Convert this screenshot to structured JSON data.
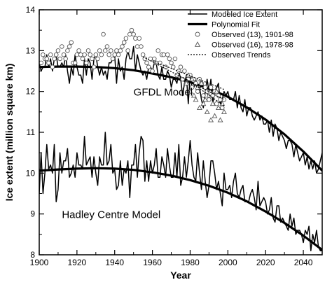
{
  "chart_data": {
    "type": "line",
    "xlabel": "Year",
    "ylabel": "Ice extent (million square km)",
    "xlim": [
      1900,
      2050
    ],
    "ylim": [
      8,
      14
    ],
    "x_ticks": [
      1900,
      1920,
      1940,
      1960,
      1980,
      2000,
      2020,
      2040
    ],
    "y_ticks": [
      8,
      9,
      10,
      11,
      12,
      13,
      14
    ],
    "grid": false,
    "legend_position": "top-right",
    "annotations": [
      {
        "text": "GFDL Model",
        "x": 1950,
        "y": 11.9
      },
      {
        "text": "Hadley Centre Model",
        "x": 1912,
        "y": 8.9
      }
    ],
    "legend": [
      {
        "label": "Modeled Ice Extent",
        "style": "thin-line"
      },
      {
        "label": "Polynomial Fit",
        "style": "thick-line"
      },
      {
        "label": "Observed (13), 1901-98",
        "style": "circle"
      },
      {
        "label": "Observed (16), 1978-98",
        "style": "triangle"
      },
      {
        "label": "Observed Trends",
        "style": "dotted-line"
      }
    ],
    "series": [
      {
        "name": "GFDL Model",
        "kind": "modeled",
        "x_start": 1900,
        "x_step": 1,
        "values": [
          12.7,
          12.5,
          12.6,
          12.6,
          12.9,
          12.6,
          12.8,
          12.5,
          12.8,
          12.9,
          12.6,
          12.6,
          12.7,
          12.6,
          12.9,
          12.5,
          12.2,
          12.6,
          12.4,
          12.9,
          12.6,
          12.4,
          12.4,
          12.2,
          12.8,
          12.4,
          12.8,
          12.7,
          12.3,
          12.8,
          12.9,
          12.6,
          12.4,
          12.6,
          12.4,
          12.5,
          12.3,
          12.7,
          12.7,
          12.8,
          12.9,
          12.2,
          12.8,
          12.5,
          12.6,
          12.3,
          12.8,
          13.0,
          12.8,
          12.8,
          13.1,
          12.5,
          12.9,
          12.7,
          12.5,
          12.4,
          12.5,
          12.3,
          12.6,
          12.6,
          12.5,
          12.7,
          12.7,
          12.4,
          12.3,
          12.6,
          12.3,
          12.3,
          12.5,
          12.4,
          12.1,
          12.3,
          12.3,
          12.2,
          12.5,
          12.3,
          11.9,
          12.2,
          12.4,
          11.7,
          12.4,
          12.1,
          12.1,
          12.3,
          12.0,
          12.1,
          11.8,
          11.6,
          12.0,
          12.3,
          12.0,
          12.3,
          11.7,
          12.0,
          12.1,
          12.2,
          11.7,
          11.8,
          12.0,
          11.9,
          12.0,
          11.8,
          11.8,
          11.8,
          12.0,
          11.6,
          11.9,
          11.6,
          11.5,
          11.8,
          11.4,
          11.6,
          11.6,
          11.4,
          11.3,
          11.4,
          11.5,
          11.3,
          11.4,
          11.2,
          11.2,
          11.3,
          11.0,
          11.3,
          10.9,
          11.2,
          11.1,
          10.8,
          11.0,
          10.9,
          10.8,
          10.6,
          10.8,
          10.8,
          10.7,
          10.4,
          10.7,
          10.5,
          10.3,
          10.4,
          10.5,
          10.2,
          10.4,
          10.1,
          10.3,
          10.1,
          10.3,
          10.0,
          10.1,
          10.3,
          10.5
        ]
      },
      {
        "name": "GFDL Model",
        "kind": "polynomial-fit",
        "x": [
          1900,
          1910,
          1920,
          1930,
          1940,
          1950,
          1960,
          1970,
          1980,
          1990,
          2000,
          2010,
          2020,
          2030,
          2040,
          2050
        ],
        "values": [
          12.6,
          12.61,
          12.61,
          12.6,
          12.57,
          12.52,
          12.44,
          12.35,
          12.23,
          12.07,
          11.87,
          11.61,
          11.31,
          10.95,
          10.53,
          10.06
        ]
      },
      {
        "name": "Hadley Centre Model",
        "kind": "modeled",
        "x_start": 1900,
        "x_step": 1,
        "values": [
          9.5,
          10.5,
          9.5,
          10.0,
          10.7,
          10.1,
          10.2,
          10.0,
          10.7,
          9.3,
          9.6,
          10.5,
          10.0,
          10.3,
          10.3,
          10.6,
          9.9,
          10.0,
          10.2,
          9.9,
          10.5,
          10.2,
          10.2,
          10.1,
          10.9,
          10.2,
          10.3,
          10.4,
          9.9,
          10.4,
          10.0,
          9.7,
          10.4,
          10.2,
          10.2,
          11.0,
          10.2,
          10.3,
          10.7,
          10.0,
          10.1,
          9.6,
          9.7,
          10.3,
          9.7,
          10.1,
          10.0,
          10.3,
          9.4,
          10.2,
          10.2,
          10.7,
          9.9,
          10.5,
          10.9,
          10.8,
          9.8,
          10.3,
          9.8,
          10.3,
          10.0,
          10.2,
          10.6,
          9.9,
          9.9,
          10.4,
          10.2,
          9.9,
          10.6,
          10.2,
          9.9,
          9.9,
          10.5,
          9.9,
          10.7,
          9.7,
          9.9,
          10.4,
          9.9,
          10.3,
          10.8,
          10.2,
          9.9,
          9.8,
          10.5,
          10.0,
          9.6,
          10.3,
          9.8,
          9.4,
          9.7,
          10.3,
          10.3,
          10.0,
          9.6,
          9.8,
          9.5,
          9.2,
          10.0,
          9.6,
          9.6,
          9.7,
          9.4,
          9.8,
          10.0,
          9.5,
          9.4,
          9.6,
          9.7,
          9.3,
          9.3,
          9.3,
          9.5,
          9.6,
          9.4,
          9.1,
          9.8,
          9.2,
          9.3,
          9.4,
          9.3,
          9.0,
          9.1,
          9.4,
          8.9,
          8.8,
          9.2,
          9.2,
          8.8,
          8.9,
          8.8,
          8.7,
          8.6,
          9.0,
          8.7,
          8.9,
          8.5,
          8.6,
          8.6,
          8.5,
          8.3,
          8.6,
          8.5,
          8.7,
          8.1,
          8.5,
          8.3,
          8.6,
          8.2,
          8.1,
          8.1
        ]
      },
      {
        "name": "Hadley Centre Model",
        "kind": "polynomial-fit",
        "x": [
          1900,
          1910,
          1920,
          1930,
          1940,
          1950,
          1960,
          1970,
          1980,
          1990,
          2000,
          2010,
          2020,
          2030,
          2040,
          2050
        ],
        "values": [
          10.06,
          10.09,
          10.11,
          10.12,
          10.11,
          10.08,
          10.02,
          9.94,
          9.83,
          9.69,
          9.52,
          9.31,
          9.06,
          8.78,
          8.47,
          8.12
        ]
      },
      {
        "name": "Observed (13), 1901-98",
        "kind": "observed-circles",
        "x_start": 1901,
        "x_step": 1,
        "values": [
          12.7,
          12.9,
          12.8,
          12.8,
          12.7,
          12.9,
          12.6,
          12.8,
          12.9,
          13.0,
          12.8,
          13.1,
          12.9,
          12.8,
          13.0,
          13.1,
          13.2,
          12.7,
          12.7,
          12.9,
          13.0,
          12.9,
          12.8,
          12.9,
          12.7,
          13.0,
          12.9,
          12.8,
          12.6,
          12.9,
          12.8,
          13.0,
          12.9,
          13.4,
          13.0,
          13.1,
          12.9,
          13.0,
          12.8,
          12.9,
          13.0,
          12.9,
          13.0,
          13.1,
          13.2,
          13.3,
          13.0,
          13.4,
          13.5,
          13.4,
          13.3,
          13.1,
          13.3,
          13.1,
          12.9,
          12.8,
          12.7,
          12.6,
          12.8,
          12.5,
          12.8,
          12.7,
          13.0,
          12.7,
          12.9,
          12.9,
          12.6,
          12.9,
          12.8,
          12.7,
          12.6,
          12.8,
          12.4,
          12.5,
          12.6,
          12.3,
          12.5,
          12.2,
          12.3,
          12.4,
          12.1,
          12.3,
          12.2,
          12.0,
          12.3,
          12.2,
          11.9,
          12.1,
          12.0,
          11.8,
          12.1,
          11.9,
          12.0,
          11.7,
          11.9,
          11.8,
          11.6,
          11.8
        ]
      },
      {
        "name": "Observed (16), 1978-98",
        "kind": "observed-triangles",
        "x_start": 1978,
        "x_step": 1,
        "values": [
          12.2,
          12.4,
          12.0,
          12.3,
          11.9,
          11.8,
          12.1,
          11.6,
          12.2,
          11.7,
          11.8,
          11.5,
          11.9,
          11.3,
          11.7,
          11.4,
          12.0,
          11.6,
          11.3,
          11.7,
          11.5
        ]
      },
      {
        "name": "Observed Trends",
        "kind": "trend-lines",
        "lines": [
          {
            "x": [
              1955,
              1998
            ],
            "values": [
              12.85,
              11.8
            ]
          },
          {
            "x": [
              1978,
              1998
            ],
            "values": [
              12.3,
              11.65
            ]
          },
          {
            "x": [
              1960,
              1998
            ],
            "values": [
              12.75,
              12.05
            ]
          }
        ]
      }
    ]
  }
}
